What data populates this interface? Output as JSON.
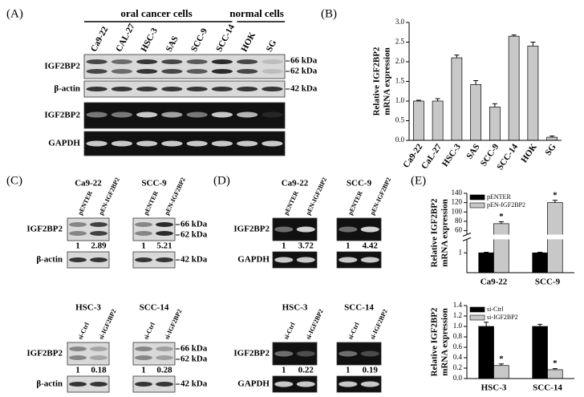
{
  "panel_a": {
    "label": "(A)",
    "group_labels": [
      "oral cancer cells",
      "normal cells"
    ],
    "lanes": [
      "Ca9-22",
      "CAL-27",
      "HSC-3",
      "SAS",
      "SCC-9",
      "SCC-14",
      "HOK",
      "SG"
    ],
    "rows": [
      "IGF2BP2",
      "β-actin",
      "IGF2BP2",
      "GAPDH"
    ],
    "markers": [
      "66 kDa",
      "62 kDa",
      "42 kDa"
    ]
  },
  "panel_c": {
    "label": "(C)",
    "sets": [
      {
        "rows": [
          "IGF2BP2",
          "β-actin"
        ],
        "markers": [
          "66 kDa",
          "62 kDa",
          "42 kDa"
        ],
        "blots": [
          {
            "cell": "Ca9-22",
            "lanes": [
              "pENTER",
              "pEN-IGF2BP2"
            ],
            "ratios": [
              1,
              2.89
            ]
          },
          {
            "cell": "SCC-9",
            "lanes": [
              "pENTER",
              "pEN-IGF2BP2"
            ],
            "ratios": [
              1,
              5.21
            ]
          }
        ]
      },
      {
        "rows": [
          "IGF2BP2",
          "β-actin"
        ],
        "markers": [
          "66 kDa",
          "62 kDa",
          "42 kDa"
        ],
        "blots": [
          {
            "cell": "HSC-3",
            "lanes": [
              "si-Ctrl",
              "si-IGF2BP2"
            ],
            "ratios": [
              1,
              0.18
            ]
          },
          {
            "cell": "SCC-14",
            "lanes": [
              "si-Ctrl",
              "si-IGF2BP2"
            ],
            "ratios": [
              1,
              0.28
            ]
          }
        ]
      }
    ]
  },
  "panel_d": {
    "label": "(D)",
    "sets": [
      {
        "rows": [
          "IGF2BP2",
          "GAPDH"
        ],
        "blots": [
          {
            "cell": "Ca9-22",
            "lanes": [
              "pENTER",
              "pEN-IGF2BP2"
            ],
            "ratios": [
              1,
              3.72
            ]
          },
          {
            "cell": "SCC-9",
            "lanes": [
              "pENTER",
              "pEN-IGF2BP2"
            ],
            "ratios": [
              1,
              4.42
            ]
          }
        ]
      },
      {
        "rows": [
          "IGF2BP2",
          "GAPDH"
        ],
        "blots": [
          {
            "cell": "HSC-3",
            "lanes": [
              "si-Ctrl",
              "si-IGF2BP2"
            ],
            "ratios": [
              1,
              0.22
            ]
          },
          {
            "cell": "SCC-14",
            "lanes": [
              "si-Ctrl",
              "si-IGF2BP2"
            ],
            "ratios": [
              1,
              0.19
            ]
          }
        ]
      }
    ]
  },
  "panel_e_label": "(E)",
  "chart_data": [
    {
      "type": "bar",
      "label": "(B)",
      "ylabel": [
        "Relative IGF2BP2",
        "mRNA expression"
      ],
      "categories": [
        "Ca9-22",
        "CaL-27",
        "HSC-3",
        "SAS",
        "SCC-9",
        "SCC-14",
        "HOK",
        "SG"
      ],
      "series": [
        {
          "color": "#c8c8c8",
          "values": [
            1.0,
            1.0,
            2.1,
            1.42,
            0.85,
            2.65,
            2.4,
            0.08
          ],
          "errors": [
            0.02,
            0.06,
            0.07,
            0.1,
            0.08,
            0.03,
            0.1,
            0.03
          ]
        }
      ],
      "ylim": [
        0,
        3
      ],
      "yticks": [
        {
          "value": 0,
          "label": "0.0"
        },
        {
          "value": 0.5,
          "label": "0.5"
        },
        {
          "value": 1,
          "label": "1.0"
        },
        {
          "value": 1.5,
          "label": "1.5"
        },
        {
          "value": 2,
          "label": "2.0"
        },
        {
          "value": 2.5,
          "label": "2.5"
        },
        {
          "value": 3,
          "label": "3.0"
        }
      ]
    },
    {
      "type": "bar",
      "ylabel": [
        "Relative IGF2BP2",
        "mRNA expression"
      ],
      "categories": [
        "Ca9-22",
        "SCC-9"
      ],
      "series": [
        {
          "name": "pENTER",
          "color": "#000000",
          "values": [
            1,
            1
          ],
          "errors": [
            0.03,
            0.03
          ]
        },
        {
          "name": "pEN-IGF2BP2",
          "color": "#c8c8c8",
          "values": [
            75,
            120
          ],
          "errors": [
            4,
            5
          ],
          "asterisks": [
            "*",
            "*"
          ]
        }
      ],
      "ylim": [
        0,
        140
      ],
      "axis_break": [
        1.6,
        55
      ],
      "yticks": [
        1,
        60,
        80,
        100,
        120,
        140
      ],
      "legend": "upper left"
    },
    {
      "type": "bar",
      "ylabel": [
        "Relative IGF2BP2",
        "mRNA expression"
      ],
      "categories": [
        "HSC-3",
        "SCC-14"
      ],
      "series": [
        {
          "name": "si-Ctrl",
          "color": "#000000",
          "values": [
            1.0,
            1.0
          ],
          "errors": [
            0.08,
            0.04
          ]
        },
        {
          "name": "si-IGF2BP2",
          "color": "#c8c8c8",
          "values": [
            0.25,
            0.17
          ],
          "errors": [
            0.03,
            0.02
          ],
          "asterisks": [
            "*",
            "*"
          ]
        }
      ],
      "ylim": [
        0,
        1.4
      ],
      "yticks": [
        {
          "value": 0,
          "label": "0.0"
        },
        {
          "value": 0.2,
          "label": "0.2"
        },
        {
          "value": 0.4,
          "label": "0.4"
        },
        {
          "value": 0.6,
          "label": "0.6"
        },
        {
          "value": 0.8,
          "label": "0.8"
        },
        {
          "value": 1,
          "label": "1.0"
        },
        {
          "value": 1.2,
          "label": "1.2"
        },
        {
          "value": 1.4,
          "label": "1.4"
        }
      ],
      "legend": "upper left"
    }
  ]
}
